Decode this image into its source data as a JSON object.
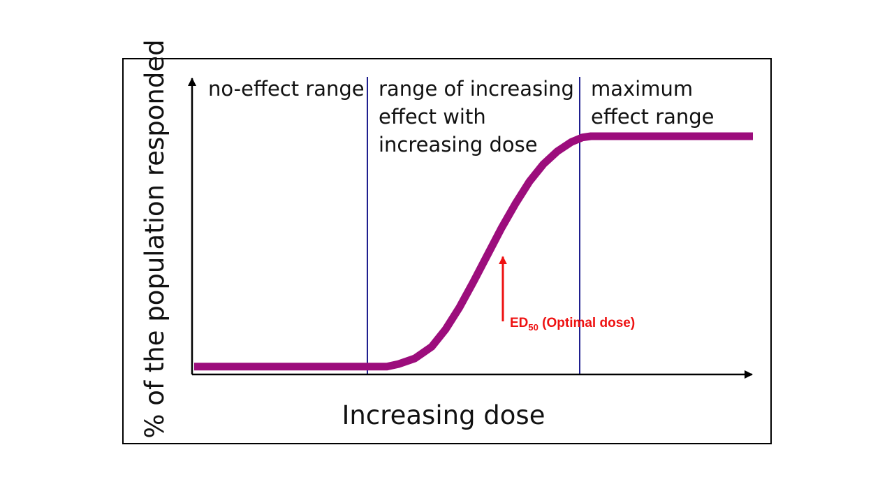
{
  "chart_data": {
    "type": "line",
    "xlabel": "Increasing dose",
    "ylabel": "% of the population responded",
    "xlim": [
      0,
      100
    ],
    "ylim": [
      0,
      100
    ],
    "grid": false,
    "series": [
      {
        "color": "#9c0d7c",
        "x": [
          0,
          34,
          34.5,
          36.5,
          39.5,
          42.5,
          45,
          47.5,
          50,
          52.5,
          55,
          57.5,
          60,
          62.5,
          65,
          67.5,
          69.5,
          71,
          100
        ],
        "y": [
          1,
          1,
          1,
          2,
          4.5,
          9.5,
          17,
          26.5,
          37.5,
          49,
          60.5,
          71,
          80.5,
          88,
          93.5,
          97.5,
          99.5,
          100,
          100
        ]
      }
    ],
    "regions": [
      {
        "lines": [
          "no-effect range"
        ]
      },
      {
        "lines": [
          "range of increasing",
          "effect with",
          "increasing dose"
        ]
      },
      {
        "lines": [
          "maximum",
          "effect range"
        ]
      }
    ],
    "boundaries": [
      31,
      69
    ],
    "boundary_color": "#1f1f8f",
    "annotation": {
      "prefix": "ED",
      "subscript": "50",
      "suffix": " (Optimal dose)",
      "x": 55,
      "y": 50,
      "color": "#ee1111"
    }
  }
}
